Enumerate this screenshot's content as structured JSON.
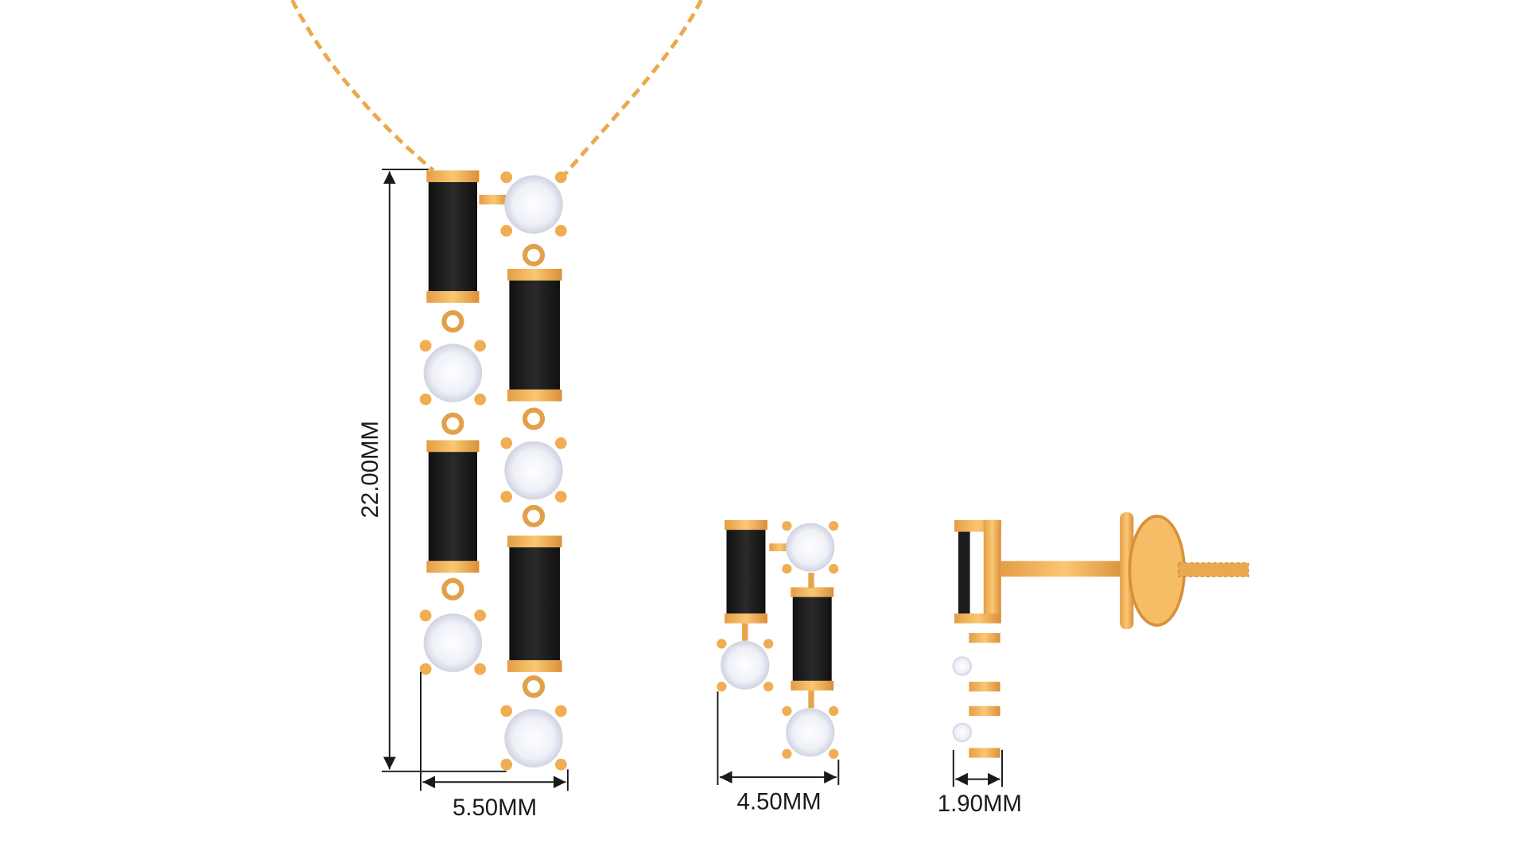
{
  "product": {
    "colors": {
      "gold": "#f2b55a",
      "gold_dark": "#d8913a",
      "onyx": "#1c1c1c",
      "diamond": "#f4f6fb",
      "line": "#1a1a1a"
    },
    "dimensions": {
      "pendant_height": "22.00MM",
      "pendant_width": "5.50MM",
      "earring_width": "4.50MM",
      "earring_depth": "1.90MM"
    }
  }
}
